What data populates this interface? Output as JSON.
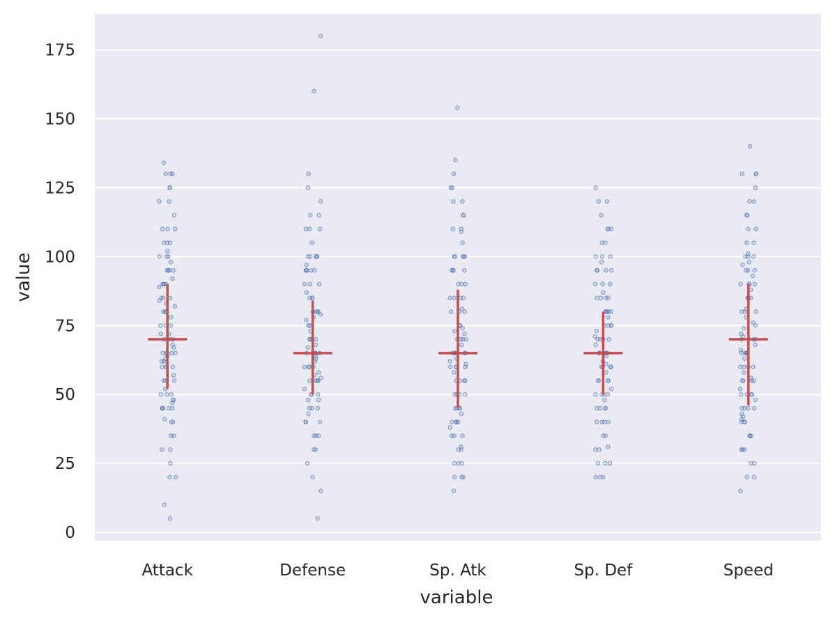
{
  "chart_data": {
    "type": "scatter",
    "xlabel": "variable",
    "ylabel": "value",
    "ylim": [
      -3,
      188
    ],
    "yticks": [
      0,
      25,
      50,
      75,
      100,
      125,
      150,
      175
    ],
    "grid": true,
    "categories": [
      "Attack",
      "Defense",
      "Sp. Atk",
      "Sp. Def",
      "Speed"
    ],
    "summary": [
      {
        "category": "Attack",
        "median": 70,
        "q1": 52,
        "q3": 90
      },
      {
        "category": "Defense",
        "median": 65,
        "q1": 50,
        "q3": 84
      },
      {
        "category": "Sp. Atk",
        "median": 65,
        "q1": 45,
        "q3": 88
      },
      {
        "category": "Sp. Def",
        "median": 65,
        "q1": 50,
        "q3": 80
      },
      {
        "category": "Speed",
        "median": 70,
        "q1": 46,
        "q3": 90
      }
    ],
    "points": [
      [
        5,
        10,
        20,
        20,
        25,
        30,
        30,
        35,
        35,
        40,
        40,
        41,
        45,
        45,
        45,
        45,
        45,
        47,
        48,
        48,
        50,
        50,
        50,
        52,
        55,
        55,
        55,
        57,
        60,
        60,
        60,
        60,
        62,
        62,
        63,
        64,
        65,
        65,
        65,
        65,
        65,
        67,
        68,
        70,
        70,
        70,
        70,
        72,
        72,
        75,
        75,
        75,
        78,
        80,
        80,
        80,
        80,
        82,
        83,
        84,
        85,
        85,
        85,
        89,
        90,
        90,
        90,
        90,
        92,
        95,
        95,
        95,
        95,
        98,
        100,
        100,
        100,
        102,
        105,
        105,
        105,
        110,
        110,
        110,
        115,
        120,
        120,
        125,
        125,
        130,
        130,
        130,
        134
      ],
      [
        5,
        15,
        20,
        25,
        30,
        30,
        35,
        35,
        35,
        40,
        40,
        40,
        43,
        45,
        45,
        45,
        48,
        48,
        50,
        50,
        50,
        52,
        55,
        55,
        55,
        55,
        56,
        57,
        58,
        60,
        60,
        60,
        60,
        62,
        63,
        64,
        65,
        65,
        65,
        65,
        65,
        65,
        67,
        68,
        70,
        70,
        70,
        70,
        73,
        75,
        75,
        77,
        78,
        79,
        80,
        80,
        80,
        80,
        85,
        85,
        85,
        87,
        90,
        90,
        90,
        95,
        95,
        95,
        95,
        95,
        97,
        100,
        100,
        100,
        100,
        100,
        105,
        110,
        110,
        110,
        115,
        115,
        120,
        125,
        130,
        160,
        180
      ],
      [
        15,
        20,
        20,
        20,
        25,
        25,
        25,
        30,
        30,
        31,
        35,
        35,
        35,
        38,
        40,
        40,
        40,
        40,
        43,
        45,
        45,
        45,
        45,
        50,
        50,
        50,
        50,
        55,
        55,
        55,
        55,
        58,
        60,
        60,
        60,
        60,
        61,
        62,
        63,
        65,
        65,
        65,
        65,
        65,
        68,
        70,
        70,
        70,
        70,
        72,
        73,
        74,
        75,
        75,
        80,
        80,
        80,
        81,
        85,
        85,
        85,
        85,
        90,
        90,
        90,
        95,
        95,
        95,
        95,
        100,
        100,
        100,
        100,
        100,
        105,
        109,
        110,
        110,
        115,
        115,
        120,
        120,
        125,
        125,
        130,
        135,
        154
      ],
      [
        20,
        20,
        20,
        25,
        25,
        25,
        30,
        30,
        31,
        35,
        35,
        40,
        40,
        40,
        40,
        45,
        45,
        45,
        45,
        48,
        50,
        50,
        50,
        50,
        52,
        55,
        55,
        55,
        55,
        58,
        60,
        60,
        60,
        60,
        61,
        62,
        64,
        65,
        65,
        65,
        65,
        65,
        65,
        68,
        70,
        70,
        70,
        70,
        71,
        73,
        75,
        75,
        75,
        75,
        78,
        80,
        80,
        80,
        80,
        80,
        85,
        85,
        85,
        85,
        87,
        90,
        90,
        90,
        95,
        95,
        95,
        95,
        98,
        100,
        100,
        100,
        105,
        105,
        110,
        110,
        110,
        115,
        120,
        120,
        125
      ],
      [
        15,
        20,
        20,
        25,
        25,
        30,
        30,
        30,
        35,
        35,
        35,
        40,
        40,
        40,
        41,
        42,
        43,
        45,
        45,
        45,
        45,
        48,
        50,
        50,
        50,
        50,
        52,
        55,
        55,
        55,
        55,
        56,
        58,
        60,
        60,
        60,
        60,
        63,
        65,
        65,
        65,
        65,
        65,
        66,
        68,
        70,
        70,
        70,
        70,
        71,
        72,
        74,
        75,
        76,
        78,
        80,
        80,
        80,
        81,
        85,
        85,
        85,
        85,
        88,
        90,
        90,
        90,
        90,
        93,
        95,
        95,
        95,
        97,
        98,
        100,
        100,
        100,
        101,
        105,
        105,
        110,
        110,
        115,
        115,
        120,
        120,
        125,
        130,
        130,
        130,
        140
      ]
    ]
  }
}
